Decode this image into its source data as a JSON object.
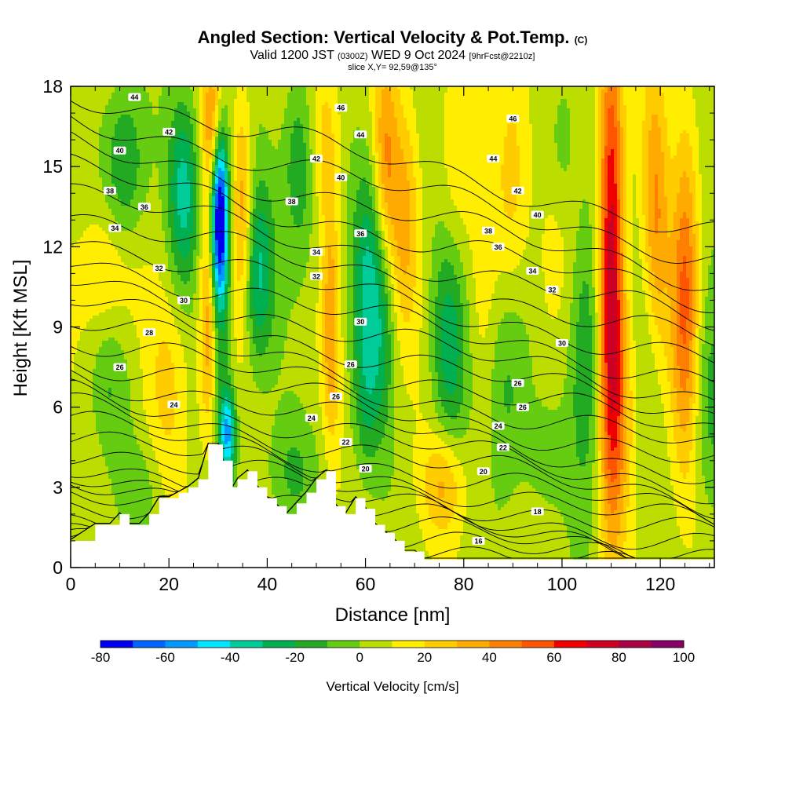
{
  "header": {
    "title": "Angled Section: Vertical Velocity & Pot.Temp.",
    "title_suffix": "(C)",
    "valid_pre": "Valid 1200 JST",
    "valid_zulu": "(0300Z)",
    "valid_date": "WED 9 Oct 2024",
    "fcst_info": "[9hrFcst@2210z]",
    "slice": "slice X,Y= 92,59@135°"
  },
  "chart_data": {
    "type": "heatmap",
    "title": "Angled Section: Vertical Velocity & Pot.Temp.",
    "xlabel": "Distance [nm]",
    "ylabel": "Height [Kft MSL]",
    "xlim": [
      0,
      131
    ],
    "ylim": [
      0,
      18
    ],
    "x_ticks": [
      0,
      20,
      40,
      60,
      80,
      100,
      120
    ],
    "y_ticks": [
      0,
      3,
      6,
      9,
      12,
      15,
      18
    ],
    "colorbar": {
      "title": "Vertical Velocity [cm/s]",
      "ticks": [
        -80,
        -60,
        -40,
        -20,
        0,
        20,
        40,
        60,
        80,
        100
      ],
      "levels": [
        -80,
        -70,
        -60,
        -50,
        -40,
        -30,
        -20,
        -10,
        0,
        10,
        20,
        30,
        40,
        50,
        60,
        70,
        80,
        90,
        100
      ],
      "colors": [
        "#0000ee",
        "#0066ff",
        "#0099ff",
        "#00e5ff",
        "#00cc99",
        "#00b050",
        "#22aa22",
        "#66cc11",
        "#bbdd00",
        "#ffee00",
        "#ffcc00",
        "#ffaa00",
        "#ff8000",
        "#ff5500",
        "#ee0000",
        "#cc0022",
        "#aa0044",
        "#880066"
      ]
    },
    "terrain_kft": [
      [
        0,
        1
      ],
      [
        5,
        1.6
      ],
      [
        8,
        1.6
      ],
      [
        10,
        2
      ],
      [
        12,
        1.6
      ],
      [
        14,
        1.6
      ],
      [
        16,
        2
      ],
      [
        18,
        2.6
      ],
      [
        20,
        2.6
      ],
      [
        22,
        2.8
      ],
      [
        24,
        3
      ],
      [
        26,
        3.3
      ],
      [
        28,
        4.6
      ],
      [
        30,
        4.6
      ],
      [
        31,
        4
      ],
      [
        33,
        3
      ],
      [
        34,
        3.3
      ],
      [
        36,
        3.6
      ],
      [
        38,
        3
      ],
      [
        40,
        2.6
      ],
      [
        42,
        2.3
      ],
      [
        44,
        2
      ],
      [
        46,
        2.4
      ],
      [
        48,
        2.8
      ],
      [
        50,
        3.3
      ],
      [
        52,
        3.6
      ],
      [
        54,
        2.3
      ],
      [
        56,
        2
      ],
      [
        58,
        2.6
      ],
      [
        60,
        2.2
      ],
      [
        62,
        1.6
      ],
      [
        64,
        1.3
      ],
      [
        66,
        1
      ],
      [
        68,
        0.6
      ],
      [
        70,
        0.6
      ],
      [
        72,
        0.3
      ],
      [
        131,
        0.3
      ]
    ],
    "theta_contours": [
      {
        "label": "16",
        "at": [
          83,
          1.0
        ]
      },
      {
        "label": "18",
        "at": [
          95,
          2.1
        ]
      },
      {
        "label": "20",
        "at": [
          60,
          3.7
        ]
      },
      {
        "label": "20",
        "at": [
          84,
          3.6
        ]
      },
      {
        "label": "22",
        "at": [
          56,
          4.7
        ]
      },
      {
        "label": "22",
        "at": [
          88,
          4.5
        ]
      },
      {
        "label": "24",
        "at": [
          21,
          6.1
        ]
      },
      {
        "label": "24",
        "at": [
          49,
          5.6
        ]
      },
      {
        "label": "24",
        "at": [
          87,
          5.3
        ]
      },
      {
        "label": "26",
        "at": [
          54,
          6.4
        ]
      },
      {
        "label": "26",
        "at": [
          92,
          6.0
        ]
      },
      {
        "label": "26",
        "at": [
          10,
          7.5
        ]
      },
      {
        "label": "26",
        "at": [
          57,
          7.6
        ]
      },
      {
        "label": "26",
        "at": [
          91,
          6.9
        ]
      },
      {
        "label": "28",
        "at": [
          16,
          8.8
        ]
      },
      {
        "label": "30",
        "at": [
          23,
          10.0
        ]
      },
      {
        "label": "30",
        "at": [
          59,
          9.2
        ]
      },
      {
        "label": "30",
        "at": [
          100,
          8.4
        ]
      },
      {
        "label": "32",
        "at": [
          18,
          11.2
        ]
      },
      {
        "label": "32",
        "at": [
          50,
          10.9
        ]
      },
      {
        "label": "32",
        "at": [
          98,
          10.4
        ]
      },
      {
        "label": "34",
        "at": [
          9,
          12.7
        ]
      },
      {
        "label": "34",
        "at": [
          50,
          11.8
        ]
      },
      {
        "label": "34",
        "at": [
          94,
          11.1
        ]
      },
      {
        "label": "36",
        "at": [
          15,
          13.5
        ]
      },
      {
        "label": "36",
        "at": [
          59,
          12.5
        ]
      },
      {
        "label": "36",
        "at": [
          87,
          12.0
        ]
      },
      {
        "label": "38",
        "at": [
          8,
          14.1
        ]
      },
      {
        "label": "38",
        "at": [
          45,
          13.7
        ]
      },
      {
        "label": "38",
        "at": [
          85,
          12.6
        ]
      },
      {
        "label": "40",
        "at": [
          10,
          15.6
        ]
      },
      {
        "label": "40",
        "at": [
          55,
          14.6
        ]
      },
      {
        "label": "40",
        "at": [
          95,
          13.2
        ]
      },
      {
        "label": "42",
        "at": [
          20,
          16.3
        ]
      },
      {
        "label": "42",
        "at": [
          50,
          15.3
        ]
      },
      {
        "label": "42",
        "at": [
          91,
          14.1
        ]
      },
      {
        "label": "44",
        "at": [
          13,
          17.6
        ]
      },
      {
        "label": "44",
        "at": [
          59,
          16.2
        ]
      },
      {
        "label": "44",
        "at": [
          86,
          15.3
        ]
      },
      {
        "label": "46",
        "at": [
          55,
          17.2
        ]
      },
      {
        "label": "46",
        "at": [
          90,
          16.8
        ]
      }
    ]
  }
}
